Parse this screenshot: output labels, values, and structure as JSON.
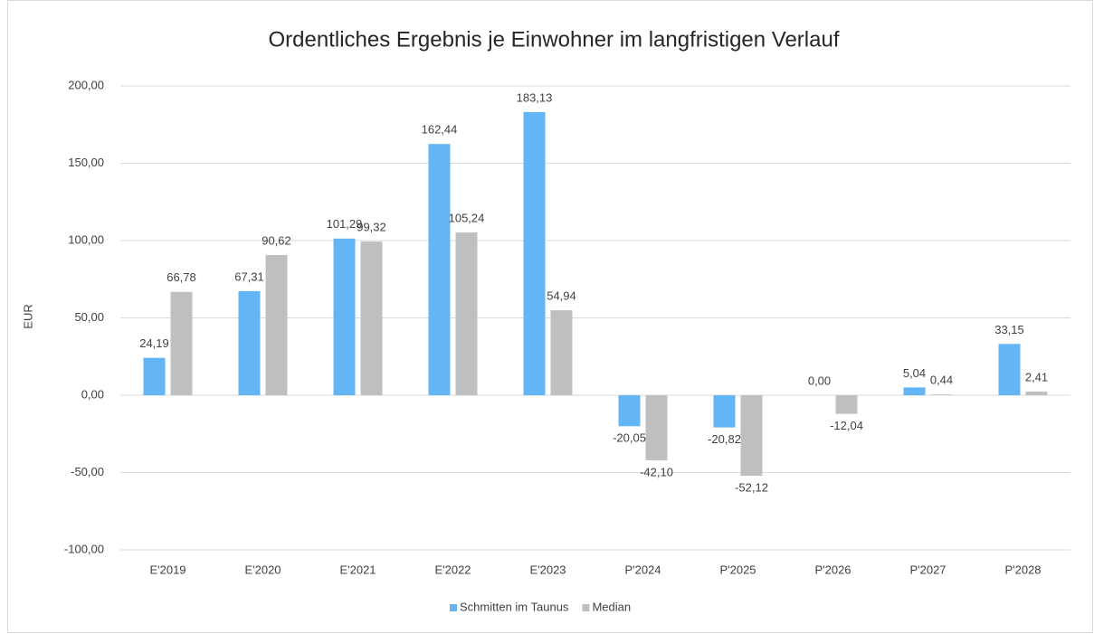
{
  "chart_data": {
    "type": "bar",
    "title": "Ordentliches Ergebnis je Einwohner im langfristigen Verlauf",
    "y_label": "EUR",
    "categories": [
      "E'2019",
      "E'2020",
      "E'2021",
      "E'2022",
      "E'2023",
      "P'2024",
      "P'2025",
      "P'2026",
      "P'2027",
      "P'2028"
    ],
    "series": [
      {
        "name": "Schmitten im Taunus",
        "color": "#63b5f5",
        "values": [
          24.19,
          67.31,
          101.29,
          162.44,
          183.13,
          -20.05,
          -20.82,
          0,
          5.04,
          33.15
        ],
        "value_labels": [
          "24,19",
          "67,31",
          "101,29",
          "162,44",
          "183,13",
          "-20,05",
          "-20,82",
          "0,00",
          "5,04",
          "33,15"
        ]
      },
      {
        "name": "Median",
        "color": "#bfbfbf",
        "values": [
          66.78,
          90.62,
          99.32,
          105.24,
          54.94,
          -42.1,
          -52.12,
          -12.04,
          0.44,
          2.41
        ],
        "value_labels": [
          "66,78",
          "90,62",
          "99,32",
          "105,24",
          "54,94",
          "-42,10",
          "-52,12",
          "-12,04",
          "0,44",
          "2,41"
        ]
      }
    ],
    "ylim": [
      -100,
      200
    ],
    "yticks": [
      {
        "value": -100,
        "label": "-100,00"
      },
      {
        "value": -50,
        "label": "-50,00"
      },
      {
        "value": 0,
        "label": "0,00"
      },
      {
        "value": 50,
        "label": "50,00"
      },
      {
        "value": 100,
        "label": "100,00"
      },
      {
        "value": 150,
        "label": "150,00"
      },
      {
        "value": 200,
        "label": "200,00"
      }
    ],
    "grid": true,
    "legend": "bottom"
  }
}
